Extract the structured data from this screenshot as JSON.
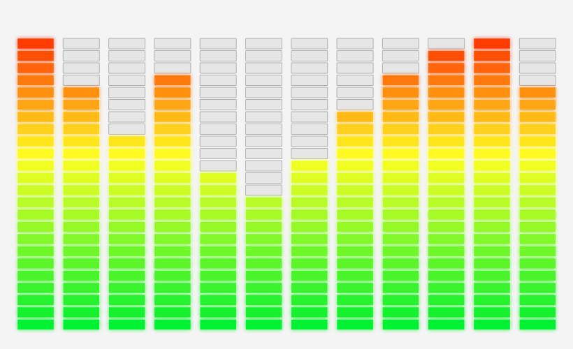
{
  "equalizer": {
    "segments": 24,
    "levels": [
      24,
      20,
      16,
      21,
      13,
      11,
      14,
      18,
      21,
      23,
      24,
      20
    ],
    "colors": {
      "top": "#ff3a00",
      "middle": "#ffff22",
      "bottom": "#00f030",
      "off": "#e6e6e6"
    }
  }
}
